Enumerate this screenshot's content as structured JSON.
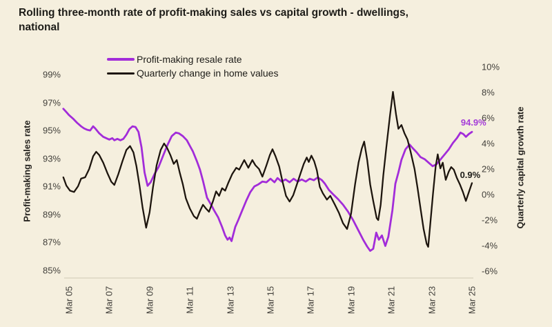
{
  "title": {
    "line1": "Rolling three-month rate of profit-making sales vs capital growth - dwellings,",
    "line2": "national"
  },
  "colors": {
    "background": "#f5efde",
    "resale_line": "#a22cd9",
    "growth_line": "#1d150e",
    "axis_line": "#d0c8b4",
    "tick_text": "#413f3a"
  },
  "legend": [
    {
      "label": "Profit-making resale rate",
      "color": "#a22cd9"
    },
    {
      "label": "Quarterly change in home values",
      "color": "#1d150e"
    }
  ],
  "chart_data": {
    "type": "line",
    "title": "Rolling three-month rate of profit-making sales vs capital growth - dwellings, national",
    "grid": false,
    "legend_position": "top-left-inside",
    "x_ticks": [
      "Mar 05",
      "Mar 07",
      "Mar 09",
      "Mar 11",
      "Mar 13",
      "Mar 15",
      "Mar 17",
      "Mar 19",
      "Mar 21",
      "Mar 23",
      "Mar 25"
    ],
    "left_axis": {
      "label": "Profit-making sales rate",
      "min": 85,
      "max": 99,
      "tick_step": 2,
      "ticks": [
        "99%",
        "97%",
        "95%",
        "93%",
        "91%",
        "89%",
        "87%",
        "85%"
      ]
    },
    "right_axis": {
      "label": "Quarterly capital growth rate",
      "min": -6,
      "max": 10,
      "tick_step": 2,
      "ticks": [
        "10%",
        "8%",
        "6%",
        "4%",
        "2%",
        "0%",
        "-2%",
        "-4%",
        "-6%"
      ]
    },
    "annotations": [
      {
        "text": "94.9%",
        "axis": "left",
        "t": 2025.33,
        "v": 95.35,
        "color": "#a53dd8"
      },
      {
        "text": "0.9%",
        "axis": "right",
        "t": 2025.16,
        "v": 1.3,
        "color": "#1d1c18"
      }
    ],
    "series": [
      {
        "id": "profit-making-resale-rate",
        "name": "Profit-making resale rate",
        "axis": "left",
        "color": "#a22cd9",
        "last_value_label": "94.9%",
        "points": [
          [
            2004.97,
            96.55
          ],
          [
            2005.1,
            96.35
          ],
          [
            2005.25,
            96.1
          ],
          [
            2005.45,
            95.85
          ],
          [
            2005.65,
            95.55
          ],
          [
            2005.85,
            95.3
          ],
          [
            2006.0,
            95.15
          ],
          [
            2006.15,
            95.05
          ],
          [
            2006.3,
            95.0
          ],
          [
            2006.45,
            95.3
          ],
          [
            2006.55,
            95.15
          ],
          [
            2006.75,
            94.8
          ],
          [
            2006.95,
            94.55
          ],
          [
            2007.1,
            94.45
          ],
          [
            2007.25,
            94.35
          ],
          [
            2007.4,
            94.45
          ],
          [
            2007.5,
            94.3
          ],
          [
            2007.65,
            94.4
          ],
          [
            2007.8,
            94.3
          ],
          [
            2007.95,
            94.4
          ],
          [
            2008.1,
            94.7
          ],
          [
            2008.25,
            95.1
          ],
          [
            2008.4,
            95.3
          ],
          [
            2008.55,
            95.25
          ],
          [
            2008.7,
            94.9
          ],
          [
            2008.85,
            93.8
          ],
          [
            2009.0,
            92.0
          ],
          [
            2009.15,
            91.05
          ],
          [
            2009.3,
            91.3
          ],
          [
            2009.5,
            91.9
          ],
          [
            2009.7,
            92.4
          ],
          [
            2009.95,
            93.3
          ],
          [
            2010.15,
            94.0
          ],
          [
            2010.35,
            94.6
          ],
          [
            2010.55,
            94.85
          ],
          [
            2010.7,
            94.8
          ],
          [
            2010.9,
            94.6
          ],
          [
            2011.1,
            94.3
          ],
          [
            2011.25,
            93.9
          ],
          [
            2011.4,
            93.5
          ],
          [
            2011.6,
            92.8
          ],
          [
            2011.75,
            92.2
          ],
          [
            2011.9,
            91.4
          ],
          [
            2012.1,
            90.2
          ],
          [
            2012.3,
            89.7
          ],
          [
            2012.45,
            89.3
          ],
          [
            2012.65,
            88.8
          ],
          [
            2012.85,
            88.1
          ],
          [
            2013.0,
            87.5
          ],
          [
            2013.12,
            87.2
          ],
          [
            2013.22,
            87.35
          ],
          [
            2013.32,
            87.1
          ],
          [
            2013.5,
            88.1
          ],
          [
            2013.65,
            88.6
          ],
          [
            2013.85,
            89.3
          ],
          [
            2014.05,
            90.0
          ],
          [
            2014.25,
            90.6
          ],
          [
            2014.45,
            91.0
          ],
          [
            2014.65,
            91.15
          ],
          [
            2014.85,
            91.35
          ],
          [
            2015.05,
            91.3
          ],
          [
            2015.25,
            91.55
          ],
          [
            2015.45,
            91.3
          ],
          [
            2015.6,
            91.6
          ],
          [
            2015.8,
            91.35
          ],
          [
            2016.0,
            91.5
          ],
          [
            2016.2,
            91.3
          ],
          [
            2016.4,
            91.55
          ],
          [
            2016.6,
            91.35
          ],
          [
            2016.8,
            91.5
          ],
          [
            2017.0,
            91.35
          ],
          [
            2017.2,
            91.55
          ],
          [
            2017.4,
            91.45
          ],
          [
            2017.6,
            91.65
          ],
          [
            2017.8,
            91.45
          ],
          [
            2017.95,
            91.2
          ],
          [
            2018.15,
            90.75
          ],
          [
            2018.35,
            90.45
          ],
          [
            2018.6,
            90.1
          ],
          [
            2018.85,
            89.7
          ],
          [
            2019.1,
            89.2
          ],
          [
            2019.35,
            88.6
          ],
          [
            2019.6,
            87.9
          ],
          [
            2019.85,
            87.2
          ],
          [
            2020.05,
            86.7
          ],
          [
            2020.2,
            86.4
          ],
          [
            2020.35,
            86.55
          ],
          [
            2020.5,
            87.7
          ],
          [
            2020.63,
            87.2
          ],
          [
            2020.78,
            87.5
          ],
          [
            2020.95,
            86.75
          ],
          [
            2021.1,
            87.4
          ],
          [
            2021.3,
            89.3
          ],
          [
            2021.45,
            91.2
          ],
          [
            2021.6,
            92.0
          ],
          [
            2021.75,
            92.9
          ],
          [
            2021.95,
            93.65
          ],
          [
            2022.15,
            94.0
          ],
          [
            2022.3,
            93.75
          ],
          [
            2022.5,
            93.45
          ],
          [
            2022.7,
            93.1
          ],
          [
            2022.9,
            92.95
          ],
          [
            2023.1,
            92.7
          ],
          [
            2023.3,
            92.45
          ],
          [
            2023.5,
            92.6
          ],
          [
            2023.7,
            92.95
          ],
          [
            2023.9,
            93.3
          ],
          [
            2024.1,
            93.65
          ],
          [
            2024.3,
            94.1
          ],
          [
            2024.5,
            94.45
          ],
          [
            2024.68,
            94.85
          ],
          [
            2024.82,
            94.75
          ],
          [
            2024.95,
            94.55
          ],
          [
            2025.1,
            94.75
          ],
          [
            2025.25,
            94.9
          ]
        ]
      },
      {
        "id": "quarterly-change-home-values",
        "name": "Quarterly change in home values",
        "axis": "right",
        "color": "#1d150e",
        "last_value_label": "0.9%",
        "points": [
          [
            2004.97,
            1.35
          ],
          [
            2005.12,
            0.7
          ],
          [
            2005.3,
            0.3
          ],
          [
            2005.5,
            0.2
          ],
          [
            2005.7,
            0.65
          ],
          [
            2005.85,
            1.25
          ],
          [
            2006.05,
            1.35
          ],
          [
            2006.25,
            2.0
          ],
          [
            2006.45,
            3.0
          ],
          [
            2006.6,
            3.35
          ],
          [
            2006.75,
            3.1
          ],
          [
            2006.95,
            2.5
          ],
          [
            2007.15,
            1.7
          ],
          [
            2007.35,
            1.0
          ],
          [
            2007.5,
            0.75
          ],
          [
            2007.7,
            1.6
          ],
          [
            2007.9,
            2.6
          ],
          [
            2008.1,
            3.5
          ],
          [
            2008.28,
            3.8
          ],
          [
            2008.45,
            3.3
          ],
          [
            2008.6,
            2.2
          ],
          [
            2008.75,
            0.7
          ],
          [
            2008.9,
            -1.0
          ],
          [
            2009.08,
            -2.6
          ],
          [
            2009.25,
            -1.4
          ],
          [
            2009.42,
            0.6
          ],
          [
            2009.6,
            2.3
          ],
          [
            2009.8,
            3.5
          ],
          [
            2009.97,
            4.0
          ],
          [
            2010.12,
            3.65
          ],
          [
            2010.28,
            3.1
          ],
          [
            2010.45,
            2.4
          ],
          [
            2010.6,
            2.7
          ],
          [
            2010.75,
            1.7
          ],
          [
            2010.9,
            0.8
          ],
          [
            2011.05,
            -0.3
          ],
          [
            2011.25,
            -1.1
          ],
          [
            2011.45,
            -1.7
          ],
          [
            2011.6,
            -1.9
          ],
          [
            2011.75,
            -1.3
          ],
          [
            2011.9,
            -0.8
          ],
          [
            2012.05,
            -1.1
          ],
          [
            2012.2,
            -1.35
          ],
          [
            2012.4,
            -0.5
          ],
          [
            2012.55,
            0.25
          ],
          [
            2012.7,
            -0.1
          ],
          [
            2012.85,
            0.5
          ],
          [
            2013.0,
            0.3
          ],
          [
            2013.15,
            0.9
          ],
          [
            2013.35,
            1.6
          ],
          [
            2013.55,
            2.1
          ],
          [
            2013.7,
            1.95
          ],
          [
            2013.95,
            2.7
          ],
          [
            2014.15,
            2.1
          ],
          [
            2014.35,
            2.7
          ],
          [
            2014.5,
            2.3
          ],
          [
            2014.68,
            2.0
          ],
          [
            2014.85,
            1.4
          ],
          [
            2015.05,
            2.3
          ],
          [
            2015.22,
            3.1
          ],
          [
            2015.35,
            3.55
          ],
          [
            2015.5,
            3.0
          ],
          [
            2015.68,
            2.2
          ],
          [
            2015.85,
            1.0
          ],
          [
            2016.02,
            -0.1
          ],
          [
            2016.2,
            -0.55
          ],
          [
            2016.38,
            -0.05
          ],
          [
            2016.55,
            0.75
          ],
          [
            2016.75,
            1.7
          ],
          [
            2016.9,
            2.4
          ],
          [
            2017.05,
            2.9
          ],
          [
            2017.15,
            2.55
          ],
          [
            2017.28,
            3.05
          ],
          [
            2017.42,
            2.6
          ],
          [
            2017.55,
            1.9
          ],
          [
            2017.7,
            0.6
          ],
          [
            2017.85,
            0.1
          ],
          [
            2018.05,
            -0.4
          ],
          [
            2018.22,
            -0.1
          ],
          [
            2018.45,
            -0.8
          ],
          [
            2018.65,
            -1.45
          ],
          [
            2018.85,
            -2.25
          ],
          [
            2019.05,
            -2.7
          ],
          [
            2019.25,
            -1.5
          ],
          [
            2019.45,
            0.8
          ],
          [
            2019.62,
            2.5
          ],
          [
            2019.78,
            3.6
          ],
          [
            2019.9,
            4.15
          ],
          [
            2020.05,
            2.7
          ],
          [
            2020.2,
            0.8
          ],
          [
            2020.35,
            -0.5
          ],
          [
            2020.52,
            -1.85
          ],
          [
            2020.6,
            -2.0
          ],
          [
            2020.72,
            -0.8
          ],
          [
            2020.85,
            1.5
          ],
          [
            2021.0,
            3.7
          ],
          [
            2021.18,
            6.2
          ],
          [
            2021.33,
            8.05
          ],
          [
            2021.48,
            6.3
          ],
          [
            2021.6,
            5.15
          ],
          [
            2021.75,
            5.45
          ],
          [
            2021.9,
            4.8
          ],
          [
            2022.05,
            4.3
          ],
          [
            2022.2,
            3.4
          ],
          [
            2022.4,
            2.0
          ],
          [
            2022.55,
            0.5
          ],
          [
            2022.7,
            -1.1
          ],
          [
            2022.85,
            -2.7
          ],
          [
            2023.0,
            -3.85
          ],
          [
            2023.08,
            -4.1
          ],
          [
            2023.2,
            -2.0
          ],
          [
            2023.32,
            0.1
          ],
          [
            2023.45,
            2.2
          ],
          [
            2023.55,
            3.15
          ],
          [
            2023.68,
            2.05
          ],
          [
            2023.8,
            2.5
          ],
          [
            2023.95,
            1.15
          ],
          [
            2024.1,
            1.8
          ],
          [
            2024.22,
            2.15
          ],
          [
            2024.35,
            1.95
          ],
          [
            2024.5,
            1.3
          ],
          [
            2024.65,
            0.8
          ],
          [
            2024.8,
            0.2
          ],
          [
            2024.95,
            -0.5
          ],
          [
            2025.1,
            0.2
          ],
          [
            2025.25,
            0.9
          ]
        ]
      }
    ]
  }
}
